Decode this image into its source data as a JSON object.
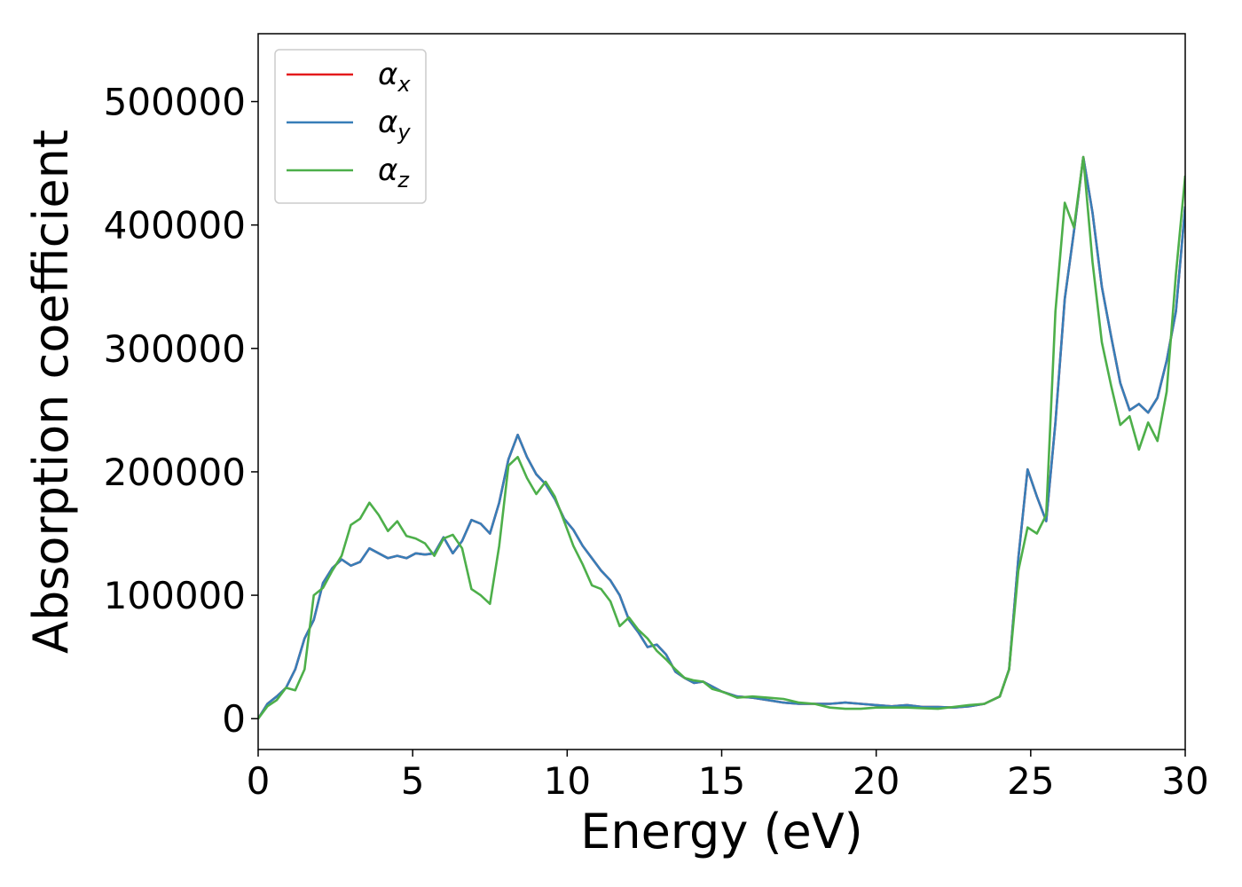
{
  "chart_data": {
    "type": "line",
    "title": "",
    "xlabel": "Energy (eV)",
    "ylabel": "Absorption coefficient",
    "xlim": [
      0,
      30
    ],
    "ylim": [
      -25000,
      555000
    ],
    "xticks": [
      0,
      5,
      10,
      15,
      20,
      25,
      30
    ],
    "xtick_labels": [
      "0",
      "5",
      "10",
      "15",
      "20",
      "25",
      "30"
    ],
    "yticks": [
      0,
      100000,
      200000,
      300000,
      400000,
      500000
    ],
    "ytick_labels": [
      "0",
      "100000",
      "200000",
      "300000",
      "400000",
      "500000"
    ],
    "grid": false,
    "legend_position": "top-left",
    "series": [
      {
        "name": "α",
        "subscript": "x",
        "color": "#e41a1c",
        "points": [
          [
            0,
            0
          ],
          [
            0.3,
            12000
          ],
          [
            0.6,
            18000
          ],
          [
            0.9,
            25000
          ],
          [
            1.2,
            40000
          ],
          [
            1.5,
            65000
          ],
          [
            1.8,
            80000
          ],
          [
            2.1,
            110000
          ],
          [
            2.4,
            122000
          ],
          [
            2.7,
            129000
          ],
          [
            3.0,
            124000
          ],
          [
            3.3,
            127000
          ],
          [
            3.6,
            138000
          ],
          [
            3.9,
            134000
          ],
          [
            4.2,
            130000
          ],
          [
            4.5,
            132000
          ],
          [
            4.8,
            130000
          ],
          [
            5.1,
            134000
          ],
          [
            5.4,
            133000
          ],
          [
            5.7,
            134000
          ],
          [
            6.0,
            147000
          ],
          [
            6.3,
            134000
          ],
          [
            6.6,
            144000
          ],
          [
            6.9,
            161000
          ],
          [
            7.2,
            158000
          ],
          [
            7.5,
            150000
          ],
          [
            7.8,
            175000
          ],
          [
            8.1,
            210000
          ],
          [
            8.4,
            230000
          ],
          [
            8.7,
            212000
          ],
          [
            9.0,
            198000
          ],
          [
            9.3,
            190000
          ],
          [
            9.6,
            178000
          ],
          [
            9.9,
            162000
          ],
          [
            10.2,
            153000
          ],
          [
            10.5,
            140000
          ],
          [
            10.8,
            130000
          ],
          [
            11.1,
            120000
          ],
          [
            11.4,
            112000
          ],
          [
            11.7,
            100000
          ],
          [
            12.0,
            80000
          ],
          [
            12.3,
            70000
          ],
          [
            12.6,
            58000
          ],
          [
            12.9,
            60000
          ],
          [
            13.2,
            52000
          ],
          [
            13.5,
            38000
          ],
          [
            13.8,
            33000
          ],
          [
            14.1,
            29000
          ],
          [
            14.4,
            30000
          ],
          [
            14.7,
            26000
          ],
          [
            15.0,
            22000
          ],
          [
            15.5,
            18000
          ],
          [
            16.0,
            17000
          ],
          [
            16.5,
            15000
          ],
          [
            17.0,
            13000
          ],
          [
            17.5,
            12000
          ],
          [
            18.0,
            12000
          ],
          [
            18.5,
            12000
          ],
          [
            19.0,
            13000
          ],
          [
            19.5,
            12000
          ],
          [
            20.0,
            11000
          ],
          [
            20.5,
            10000
          ],
          [
            21.0,
            11000
          ],
          [
            21.5,
            9500
          ],
          [
            22.0,
            9500
          ],
          [
            22.5,
            9000
          ],
          [
            23.0,
            10000
          ],
          [
            23.5,
            12000
          ],
          [
            24.0,
            18000
          ],
          [
            24.3,
            40000
          ],
          [
            24.6,
            130000
          ],
          [
            24.9,
            202000
          ],
          [
            25.2,
            180000
          ],
          [
            25.5,
            160000
          ],
          [
            25.8,
            240000
          ],
          [
            26.1,
            340000
          ],
          [
            26.4,
            395000
          ],
          [
            26.7,
            455000
          ],
          [
            27.0,
            410000
          ],
          [
            27.3,
            350000
          ],
          [
            27.6,
            310000
          ],
          [
            27.9,
            272000
          ],
          [
            28.2,
            250000
          ],
          [
            28.5,
            255000
          ],
          [
            28.8,
            248000
          ],
          [
            29.1,
            260000
          ],
          [
            29.4,
            290000
          ],
          [
            29.7,
            330000
          ],
          [
            30.0,
            415000
          ]
        ]
      },
      {
        "name": "α",
        "subscript": "y",
        "color": "#377eb8",
        "points": [
          [
            0,
            0
          ],
          [
            0.3,
            12000
          ],
          [
            0.6,
            18000
          ],
          [
            0.9,
            25000
          ],
          [
            1.2,
            40000
          ],
          [
            1.5,
            65000
          ],
          [
            1.8,
            80000
          ],
          [
            2.1,
            110000
          ],
          [
            2.4,
            122000
          ],
          [
            2.7,
            129000
          ],
          [
            3.0,
            124000
          ],
          [
            3.3,
            127000
          ],
          [
            3.6,
            138000
          ],
          [
            3.9,
            134000
          ],
          [
            4.2,
            130000
          ],
          [
            4.5,
            132000
          ],
          [
            4.8,
            130000
          ],
          [
            5.1,
            134000
          ],
          [
            5.4,
            133000
          ],
          [
            5.7,
            134000
          ],
          [
            6.0,
            147000
          ],
          [
            6.3,
            134000
          ],
          [
            6.6,
            144000
          ],
          [
            6.9,
            161000
          ],
          [
            7.2,
            158000
          ],
          [
            7.5,
            150000
          ],
          [
            7.8,
            175000
          ],
          [
            8.1,
            210000
          ],
          [
            8.4,
            230000
          ],
          [
            8.7,
            212000
          ],
          [
            9.0,
            198000
          ],
          [
            9.3,
            190000
          ],
          [
            9.6,
            178000
          ],
          [
            9.9,
            162000
          ],
          [
            10.2,
            153000
          ],
          [
            10.5,
            140000
          ],
          [
            10.8,
            130000
          ],
          [
            11.1,
            120000
          ],
          [
            11.4,
            112000
          ],
          [
            11.7,
            100000
          ],
          [
            12.0,
            80000
          ],
          [
            12.3,
            70000
          ],
          [
            12.6,
            58000
          ],
          [
            12.9,
            60000
          ],
          [
            13.2,
            52000
          ],
          [
            13.5,
            38000
          ],
          [
            13.8,
            33000
          ],
          [
            14.1,
            29000
          ],
          [
            14.4,
            30000
          ],
          [
            14.7,
            26000
          ],
          [
            15.0,
            22000
          ],
          [
            15.5,
            18000
          ],
          [
            16.0,
            17000
          ],
          [
            16.5,
            15000
          ],
          [
            17.0,
            13000
          ],
          [
            17.5,
            12000
          ],
          [
            18.0,
            12000
          ],
          [
            18.5,
            12000
          ],
          [
            19.0,
            13000
          ],
          [
            19.5,
            12000
          ],
          [
            20.0,
            11000
          ],
          [
            20.5,
            10000
          ],
          [
            21.0,
            11000
          ],
          [
            21.5,
            9500
          ],
          [
            22.0,
            9500
          ],
          [
            22.5,
            9000
          ],
          [
            23.0,
            10000
          ],
          [
            23.5,
            12000
          ],
          [
            24.0,
            18000
          ],
          [
            24.3,
            40000
          ],
          [
            24.6,
            130000
          ],
          [
            24.9,
            202000
          ],
          [
            25.2,
            180000
          ],
          [
            25.5,
            160000
          ],
          [
            25.8,
            240000
          ],
          [
            26.1,
            340000
          ],
          [
            26.4,
            395000
          ],
          [
            26.7,
            455000
          ],
          [
            27.0,
            410000
          ],
          [
            27.3,
            350000
          ],
          [
            27.6,
            310000
          ],
          [
            27.9,
            272000
          ],
          [
            28.2,
            250000
          ],
          [
            28.5,
            255000
          ],
          [
            28.8,
            248000
          ],
          [
            29.1,
            260000
          ],
          [
            29.4,
            290000
          ],
          [
            29.7,
            330000
          ],
          [
            30.0,
            415000
          ]
        ]
      },
      {
        "name": "α",
        "subscript": "z",
        "color": "#4daf4a",
        "points": [
          [
            0,
            0
          ],
          [
            0.3,
            10000
          ],
          [
            0.6,
            15000
          ],
          [
            0.9,
            25000
          ],
          [
            1.2,
            23000
          ],
          [
            1.5,
            40000
          ],
          [
            1.8,
            100000
          ],
          [
            2.1,
            106000
          ],
          [
            2.4,
            120000
          ],
          [
            2.7,
            132000
          ],
          [
            3.0,
            157000
          ],
          [
            3.3,
            162000
          ],
          [
            3.6,
            175000
          ],
          [
            3.9,
            165000
          ],
          [
            4.2,
            152000
          ],
          [
            4.5,
            160000
          ],
          [
            4.8,
            148000
          ],
          [
            5.1,
            146000
          ],
          [
            5.4,
            142000
          ],
          [
            5.7,
            132000
          ],
          [
            6.0,
            146000
          ],
          [
            6.3,
            149000
          ],
          [
            6.6,
            138000
          ],
          [
            6.9,
            105000
          ],
          [
            7.2,
            100000
          ],
          [
            7.5,
            93000
          ],
          [
            7.8,
            140000
          ],
          [
            8.1,
            205000
          ],
          [
            8.4,
            212000
          ],
          [
            8.7,
            195000
          ],
          [
            9.0,
            182000
          ],
          [
            9.3,
            192000
          ],
          [
            9.6,
            180000
          ],
          [
            9.9,
            160000
          ],
          [
            10.2,
            140000
          ],
          [
            10.5,
            125000
          ],
          [
            10.8,
            108000
          ],
          [
            11.1,
            105000
          ],
          [
            11.4,
            95000
          ],
          [
            11.7,
            75000
          ],
          [
            12.0,
            82000
          ],
          [
            12.3,
            72000
          ],
          [
            12.6,
            65000
          ],
          [
            12.9,
            55000
          ],
          [
            13.2,
            48000
          ],
          [
            13.5,
            40000
          ],
          [
            13.8,
            33000
          ],
          [
            14.1,
            31000
          ],
          [
            14.4,
            30000
          ],
          [
            14.7,
            24000
          ],
          [
            15.0,
            22000
          ],
          [
            15.5,
            17000
          ],
          [
            16.0,
            18000
          ],
          [
            16.5,
            17000
          ],
          [
            17.0,
            16000
          ],
          [
            17.5,
            13000
          ],
          [
            18.0,
            12000
          ],
          [
            18.5,
            9000
          ],
          [
            19.0,
            8000
          ],
          [
            19.5,
            8000
          ],
          [
            20.0,
            9000
          ],
          [
            20.5,
            9000
          ],
          [
            21.0,
            9000
          ],
          [
            21.5,
            8500
          ],
          [
            22.0,
            8000
          ],
          [
            22.5,
            9500
          ],
          [
            23.0,
            11000
          ],
          [
            23.5,
            12000
          ],
          [
            24.0,
            18000
          ],
          [
            24.3,
            40000
          ],
          [
            24.6,
            120000
          ],
          [
            24.9,
            155000
          ],
          [
            25.2,
            150000
          ],
          [
            25.5,
            165000
          ],
          [
            25.8,
            330000
          ],
          [
            26.1,
            418000
          ],
          [
            26.4,
            398000
          ],
          [
            26.7,
            455000
          ],
          [
            27.0,
            370000
          ],
          [
            27.3,
            305000
          ],
          [
            27.6,
            270000
          ],
          [
            27.9,
            238000
          ],
          [
            28.2,
            245000
          ],
          [
            28.5,
            218000
          ],
          [
            28.8,
            240000
          ],
          [
            29.1,
            225000
          ],
          [
            29.4,
            265000
          ],
          [
            29.7,
            360000
          ],
          [
            30.0,
            440000
          ]
        ]
      }
    ]
  }
}
